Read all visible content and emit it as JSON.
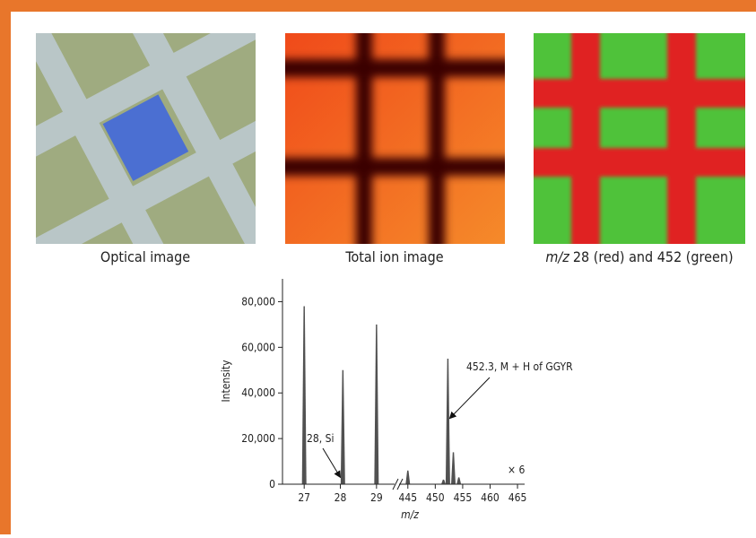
{
  "panels": [
    {
      "caption": "Optical image"
    },
    {
      "caption": "Total ion image"
    },
    {
      "caption_italic": "m/z",
      "caption": "28 (red) and 452 (green)"
    }
  ],
  "chart_data": {
    "type": "spectrum",
    "y_label": "Intensity",
    "x_label": "m/z",
    "x": [
      27,
      28.07,
      29,
      445,
      451.5,
      452.3,
      453.3,
      454.3
    ],
    "values": [
      78000,
      50000,
      70000,
      6000,
      2000,
      55000,
      14000,
      3000
    ],
    "color": "#333333",
    "xlim_segments": [
      [
        26.4,
        29.5
      ],
      [
        443.4,
        466.3
      ]
    ],
    "xticks": [
      27,
      28,
      29,
      445,
      450,
      455,
      460,
      465
    ],
    "ylim": [
      0,
      90000
    ],
    "yticks": [
      0,
      {
        "value": 20000,
        "label": "20,000"
      },
      {
        "value": 40000,
        "label": "40,000"
      },
      {
        "value": 60000,
        "label": "60,000"
      },
      {
        "value": 80000,
        "label": "80,000"
      }
    ],
    "annotations": [
      {
        "text": "28, Si",
        "x": 28,
        "y": 3000
      },
      {
        "text": "452.3, M + H of GGYR",
        "x": 452.3,
        "y": 30000
      }
    ],
    "scale_note": "× 6"
  }
}
